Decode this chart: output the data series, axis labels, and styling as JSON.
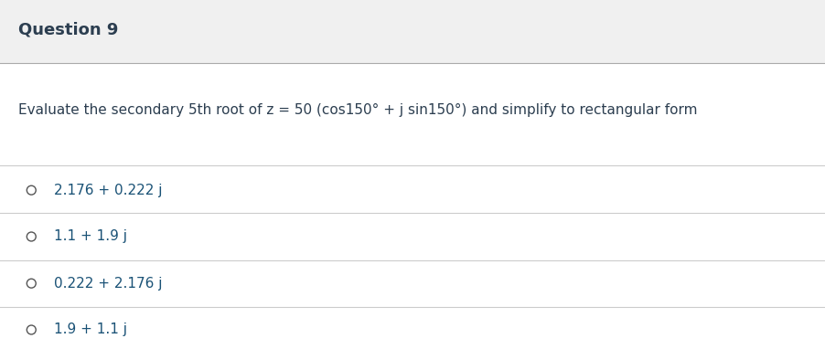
{
  "title": "Question 9",
  "question": "Evaluate the secondary 5th root of z = 50 (cos150° + j sin150°) and simplify to rectangular form",
  "options": [
    "2.176 + 0.222 j",
    "1.1 + 1.9 j",
    "0.222 + 2.176 j",
    "1.9 + 1.1 j"
  ],
  "header_bg_color": "#f0f0f0",
  "body_bg_color": "#ffffff",
  "title_color": "#2c3e50",
  "question_color": "#2c3e50",
  "option_color": "#1a5276",
  "circle_color": "#555555",
  "line_color": "#cccccc",
  "title_fontsize": 13,
  "question_fontsize": 11,
  "option_fontsize": 11
}
